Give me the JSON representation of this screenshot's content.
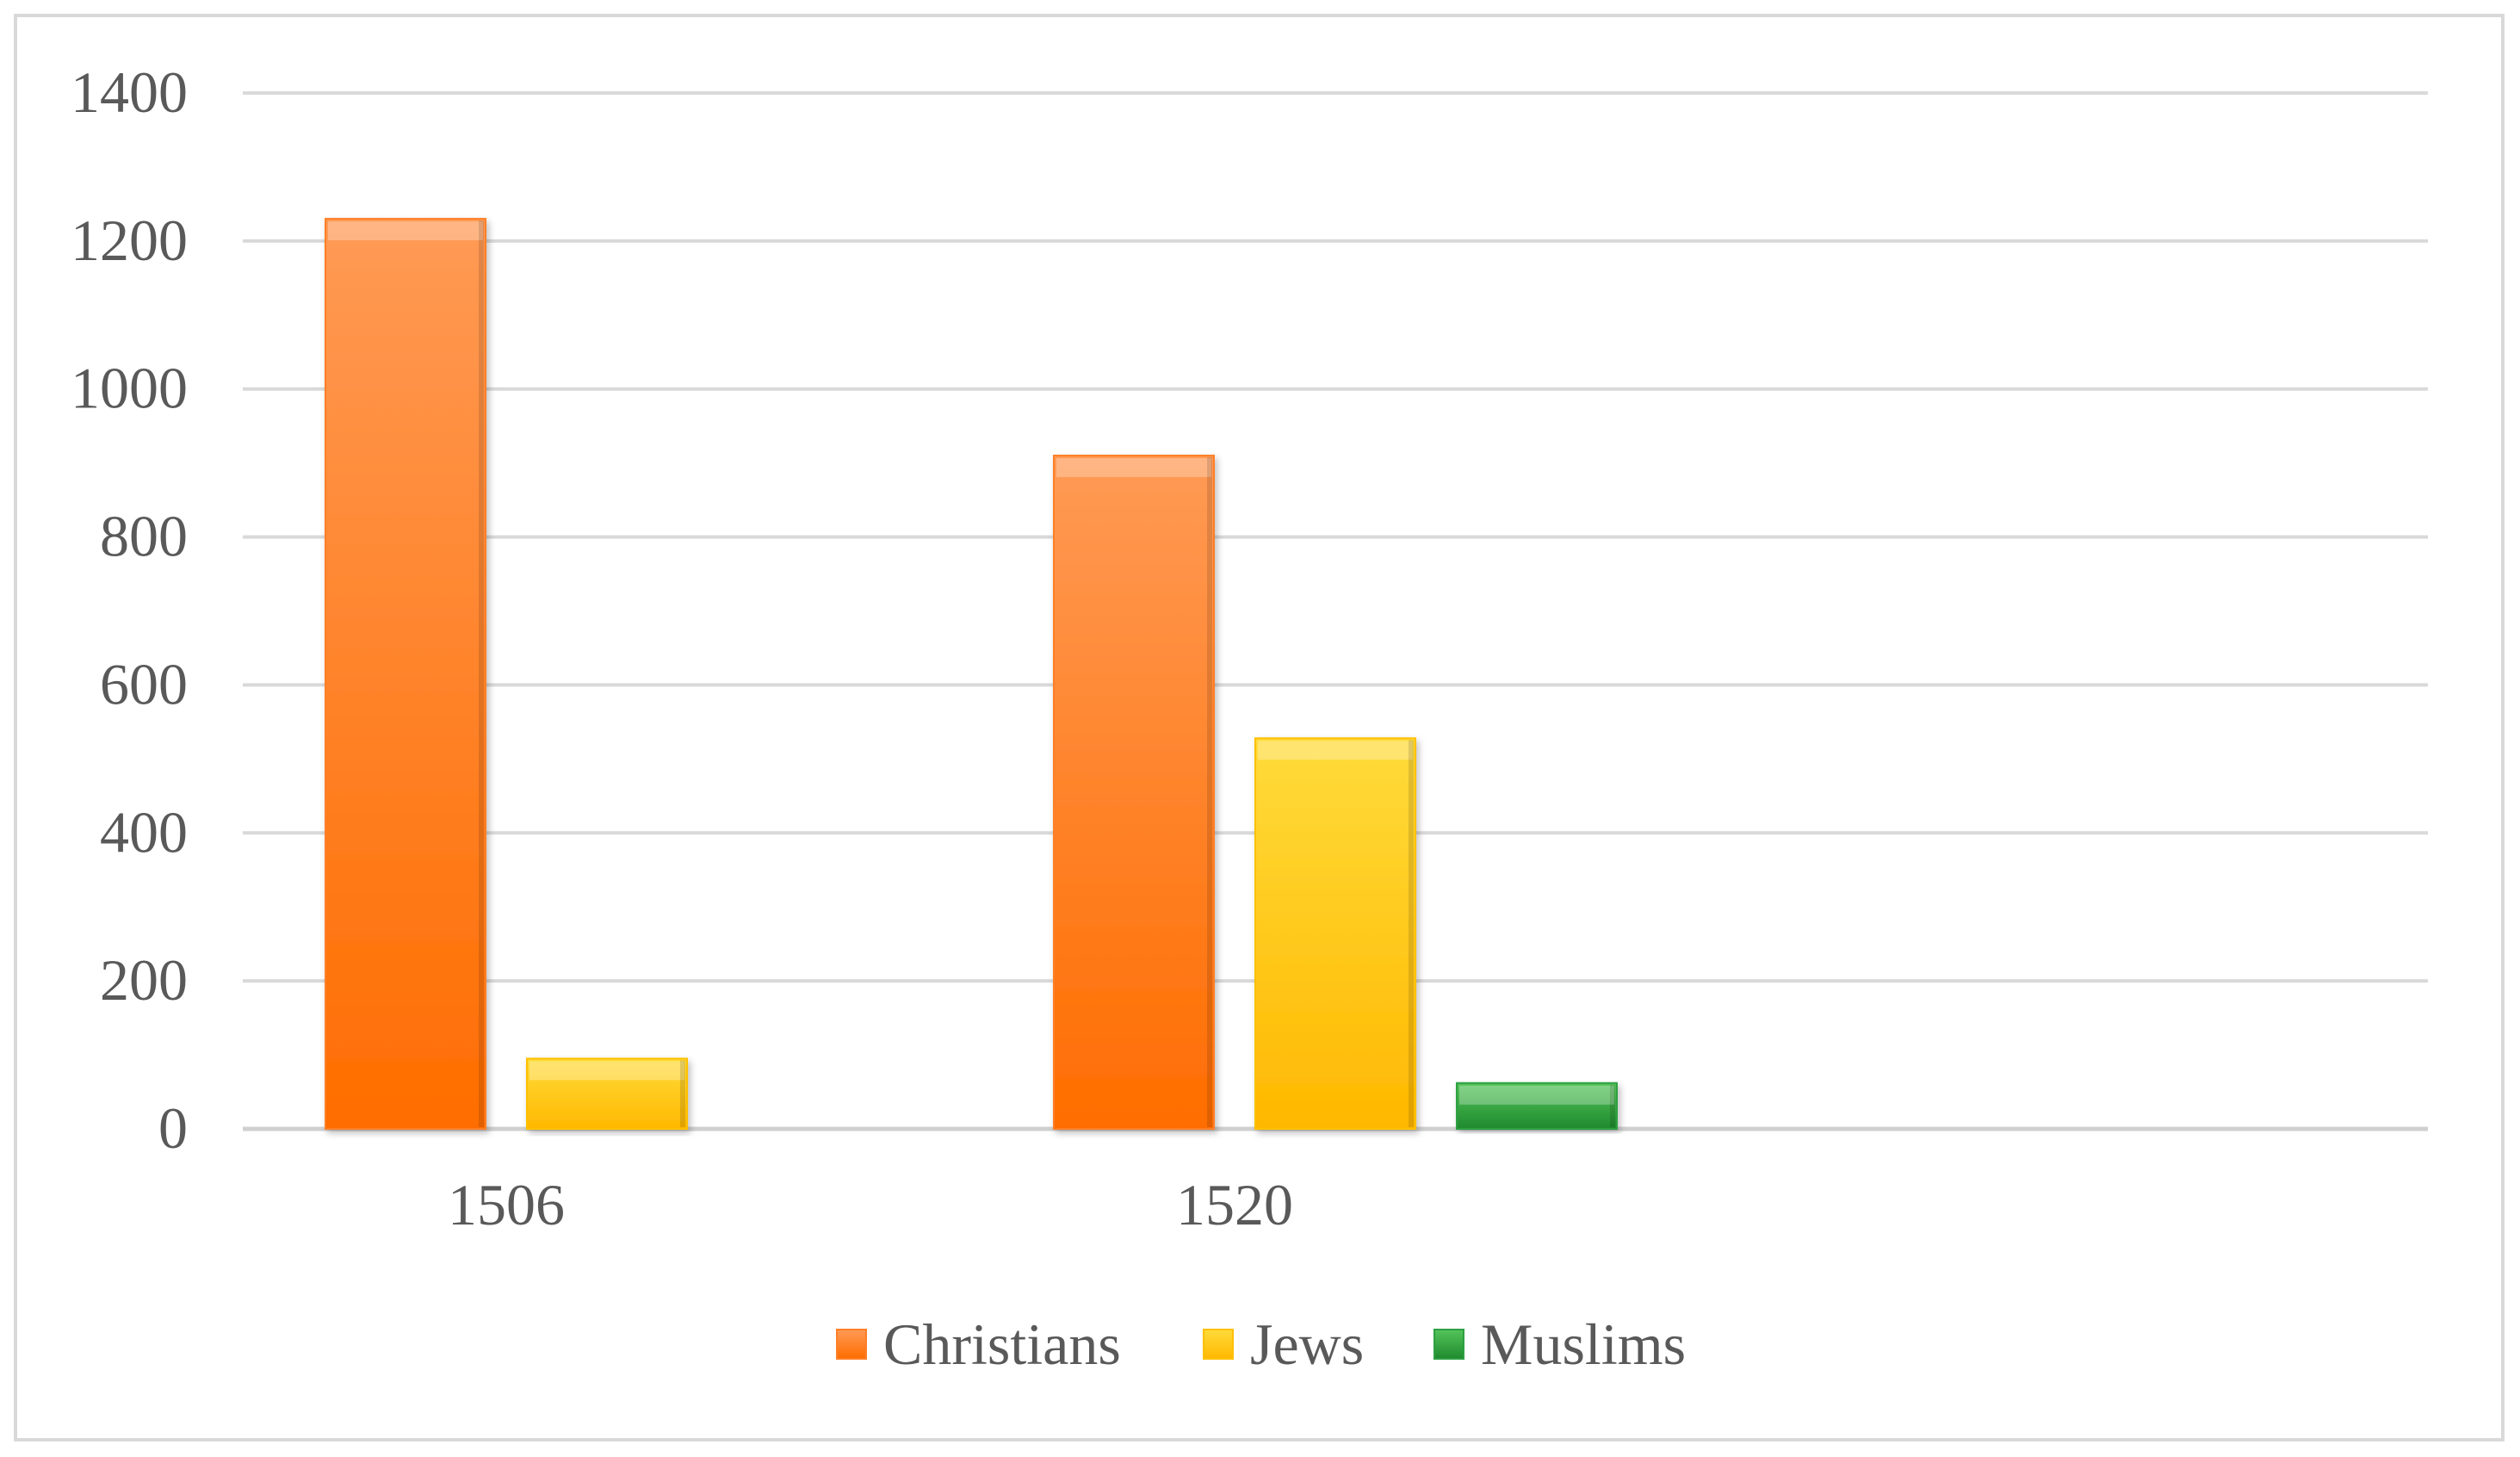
{
  "chart_data": {
    "type": "bar",
    "categories": [
      "1506",
      "1520"
    ],
    "series": [
      {
        "name": "Christians",
        "values": [
          1230,
          910
        ],
        "color": "#ff7f27"
      },
      {
        "name": "Jews",
        "values": [
          95,
          528
        ],
        "color": "#ffc000"
      },
      {
        "name": "Muslims",
        "values": [
          0,
          62
        ],
        "color": "#2ea043"
      }
    ],
    "title": "",
    "xlabel": "",
    "ylabel": "",
    "ylim": [
      0,
      1400
    ],
    "yticks": [
      0,
      200,
      400,
      600,
      800,
      1000,
      1200,
      1400
    ],
    "grid": true,
    "legend_position": "bottom"
  }
}
